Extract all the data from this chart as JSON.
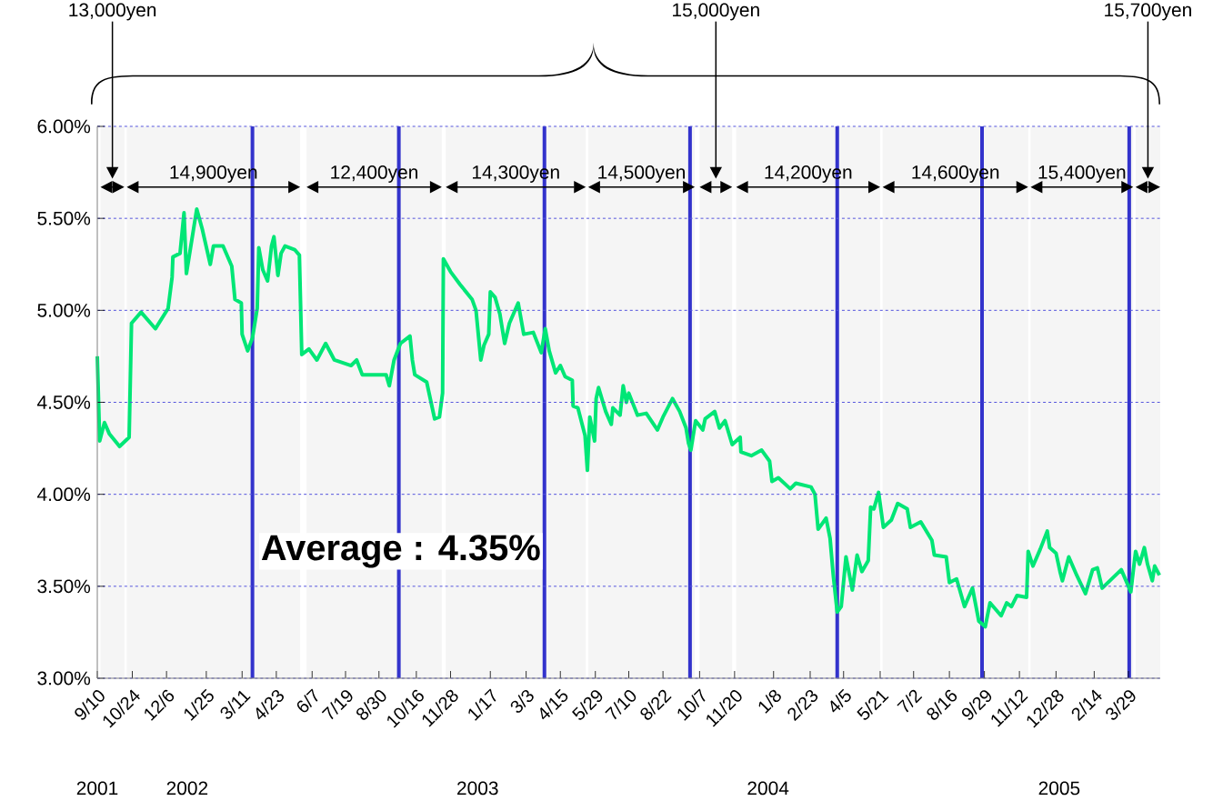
{
  "chart_data": {
    "type": "line",
    "marker": "none",
    "line_style": "solid",
    "grid": "y",
    "x": [
      "2001-09-10",
      "2001-09-13",
      "2001-09-19",
      "2001-09-25",
      "2001-10-08",
      "2001-10-20",
      "2001-10-23",
      "2001-11-04",
      "2001-11-22",
      "2001-12-08",
      "2001-12-13",
      "2001-12-14",
      "2001-12-23",
      "2001-12-28",
      "2001-12-31",
      "2002-01-13",
      "2002-01-20",
      "2002-01-30",
      "2002-02-03",
      "2002-02-15",
      "2002-02-26",
      "2002-03-02",
      "2002-03-10",
      "2002-03-11",
      "2002-03-18",
      "2002-03-24",
      "2002-03-30",
      "2002-04-01",
      "2002-04-06",
      "2002-04-12",
      "2002-04-17",
      "2002-04-20",
      "2002-04-25",
      "2002-04-29",
      "2002-05-04",
      "2002-05-16",
      "2002-05-22",
      "2002-05-25",
      "2002-06-03",
      "2002-06-13",
      "2002-06-24",
      "2002-07-05",
      "2002-07-26",
      "2002-08-02",
      "2002-08-09",
      "2002-09-08",
      "2002-09-12",
      "2002-09-18",
      "2002-09-26",
      "2002-10-08",
      "2002-10-11",
      "2002-10-14",
      "2002-10-29",
      "2002-11-08",
      "2002-11-14",
      "2002-11-18",
      "2002-11-19",
      "2002-11-28",
      "2002-12-10",
      "2002-12-25",
      "2002-12-30",
      "2003-01-05",
      "2003-01-09",
      "2003-01-15",
      "2003-01-17",
      "2003-01-23",
      "2003-01-29",
      "2003-02-04",
      "2003-02-10",
      "2003-02-21",
      "2003-02-28",
      "2003-03-12",
      "2003-03-22",
      "2003-03-27",
      "2003-04-01",
      "2003-04-09",
      "2003-04-15",
      "2003-04-21",
      "2003-04-30",
      "2003-05-01",
      "2003-05-07",
      "2003-05-16",
      "2003-05-19",
      "2003-05-22",
      "2003-05-28",
      "2003-05-30",
      "2003-06-02",
      "2003-06-11",
      "2003-06-18",
      "2003-06-20",
      "2003-06-29",
      "2003-07-03",
      "2003-07-07",
      "2003-07-10",
      "2003-07-21",
      "2003-08-01",
      "2003-08-15",
      "2003-08-22",
      "2003-09-03",
      "2003-09-12",
      "2003-09-20",
      "2003-09-23",
      "2003-09-26",
      "2003-10-02",
      "2003-10-11",
      "2003-10-14",
      "2003-10-26",
      "2003-11-01",
      "2003-11-08",
      "2003-11-17",
      "2003-11-27",
      "2003-11-28",
      "2003-12-11",
      "2003-12-24",
      "2004-01-03",
      "2004-01-06",
      "2004-01-14",
      "2004-01-29",
      "2004-02-05",
      "2004-02-24",
      "2004-02-29",
      "2004-03-04",
      "2004-03-14",
      "2004-03-19",
      "2004-03-23",
      "2004-03-28",
      "2004-04-02",
      "2004-04-08",
      "2004-04-16",
      "2004-04-22",
      "2004-04-28",
      "2004-05-06",
      "2004-05-09",
      "2004-05-13",
      "2004-05-19",
      "2004-05-25",
      "2004-06-04",
      "2004-06-12",
      "2004-06-24",
      "2004-06-28",
      "2004-07-11",
      "2004-07-25",
      "2004-07-28",
      "2004-08-12",
      "2004-08-16",
      "2004-08-25",
      "2004-09-04",
      "2004-09-14",
      "2004-09-22",
      "2004-09-30",
      "2004-10-06",
      "2004-10-20",
      "2004-10-27",
      "2004-11-02",
      "2004-11-09",
      "2004-11-21",
      "2004-11-23",
      "2004-11-29",
      "2004-12-08",
      "2004-12-17",
      "2004-12-20",
      "2004-12-28",
      "2005-01-02",
      "2005-01-05",
      "2005-01-13",
      "2005-01-23",
      "2005-02-03",
      "2005-02-12",
      "2005-02-18",
      "2005-02-24",
      "2005-03-08",
      "2005-03-20",
      "2005-04-01",
      "2005-04-07",
      "2005-04-12",
      "2005-04-18",
      "2005-04-22",
      "2005-04-28",
      "2005-05-01",
      "2005-05-07"
    ],
    "series": [
      {
        "color": "#00e676",
        "values": [
          4.75,
          4.29,
          4.39,
          4.33,
          4.26,
          4.31,
          4.93,
          4.99,
          4.9,
          5.01,
          5.18,
          5.29,
          5.31,
          5.53,
          5.2,
          5.55,
          5.44,
          5.25,
          5.35,
          5.35,
          5.24,
          5.06,
          5.04,
          4.87,
          4.78,
          4.85,
          5.01,
          5.34,
          5.22,
          5.16,
          5.35,
          5.4,
          5.19,
          5.31,
          5.35,
          5.33,
          5.3,
          4.76,
          4.79,
          4.73,
          4.82,
          4.73,
          4.7,
          4.73,
          4.65,
          4.65,
          4.59,
          4.73,
          4.82,
          4.86,
          4.73,
          4.65,
          4.61,
          4.41,
          4.42,
          4.55,
          5.28,
          5.21,
          5.14,
          5.06,
          5.0,
          4.73,
          4.81,
          4.87,
          5.1,
          5.07,
          4.98,
          4.82,
          4.93,
          5.04,
          4.87,
          4.88,
          4.77,
          4.9,
          4.78,
          4.66,
          4.7,
          4.64,
          4.62,
          4.48,
          4.47,
          4.32,
          4.13,
          4.42,
          4.29,
          4.52,
          4.58,
          4.45,
          4.38,
          4.47,
          4.43,
          4.59,
          4.5,
          4.55,
          4.43,
          4.44,
          4.35,
          4.42,
          4.52,
          4.45,
          4.36,
          4.28,
          4.24,
          4.4,
          4.35,
          4.41,
          4.45,
          4.36,
          4.4,
          4.27,
          4.31,
          4.23,
          4.21,
          4.24,
          4.18,
          4.07,
          4.09,
          4.03,
          4.06,
          4.04,
          4.0,
          3.81,
          3.87,
          3.76,
          3.56,
          3.36,
          3.39,
          3.66,
          3.48,
          3.67,
          3.58,
          3.64,
          3.93,
          3.92,
          4.01,
          3.82,
          3.86,
          3.95,
          3.92,
          3.82,
          3.85,
          3.75,
          3.67,
          3.66,
          3.52,
          3.54,
          3.39,
          3.49,
          3.31,
          3.28,
          3.41,
          3.34,
          3.41,
          3.39,
          3.45,
          3.44,
          3.69,
          3.61,
          3.7,
          3.8,
          3.71,
          3.68,
          3.58,
          3.53,
          3.66,
          3.56,
          3.46,
          3.59,
          3.6,
          3.49,
          3.54,
          3.59,
          3.47,
          3.69,
          3.62,
          3.71,
          3.62,
          3.53,
          3.61,
          3.56
        ]
      }
    ],
    "xlim": [
      "2001-09-10",
      "2005-05-08"
    ],
    "xticks": [
      {
        "value": "2001-09-10",
        "label": "9/10"
      },
      {
        "value": "2001-10-24",
        "label": "10/24"
      },
      {
        "value": "2001-12-06",
        "label": "12/6"
      },
      {
        "value": "2002-01-25",
        "label": "1/25"
      },
      {
        "value": "2002-03-11",
        "label": "3/11"
      },
      {
        "value": "2002-04-23",
        "label": "4/23"
      },
      {
        "value": "2002-06-07",
        "label": "6/7"
      },
      {
        "value": "2002-07-19",
        "label": "7/19"
      },
      {
        "value": "2002-08-30",
        "label": "8/30"
      },
      {
        "value": "2002-10-16",
        "label": "10/16"
      },
      {
        "value": "2002-11-28",
        "label": "11/28"
      },
      {
        "value": "2003-01-17",
        "label": "1/17"
      },
      {
        "value": "2003-03-03",
        "label": "3/3"
      },
      {
        "value": "2003-04-15",
        "label": "4/15"
      },
      {
        "value": "2003-05-29",
        "label": "5/29"
      },
      {
        "value": "2003-07-10",
        "label": "7/10"
      },
      {
        "value": "2003-08-22",
        "label": "8/22"
      },
      {
        "value": "2003-10-07",
        "label": "10/7"
      },
      {
        "value": "2003-11-20",
        "label": "11/20"
      },
      {
        "value": "2004-01-08",
        "label": "1/8"
      },
      {
        "value": "2004-02-23",
        "label": "2/23"
      },
      {
        "value": "2004-04-05",
        "label": "4/5"
      },
      {
        "value": "2004-05-21",
        "label": "5/21"
      },
      {
        "value": "2004-07-02",
        "label": "7/2"
      },
      {
        "value": "2004-08-16",
        "label": "8/16"
      },
      {
        "value": "2004-09-29",
        "label": "9/29"
      },
      {
        "value": "2004-11-12",
        "label": "11/12"
      },
      {
        "value": "2004-12-28",
        "label": "12/28"
      },
      {
        "value": "2005-02-14",
        "label": "2/14"
      },
      {
        "value": "2005-03-29",
        "label": "3/29"
      }
    ],
    "ylim": [
      3,
      6
    ],
    "yticks": [
      {
        "value": 3,
        "label": "3.00%"
      },
      {
        "value": 3.5,
        "label": "3.50%"
      },
      {
        "value": 4,
        "label": "4.00%"
      },
      {
        "value": 4.5,
        "label": "4.50%"
      },
      {
        "value": 5,
        "label": "5.00%"
      },
      {
        "value": 5.5,
        "label": "5.50%"
      },
      {
        "value": 6,
        "label": "6.00%"
      }
    ],
    "ref_lines": [
      {
        "axis": "x",
        "value": "2002-03-24",
        "color": "#3333cc"
      },
      {
        "axis": "x",
        "value": "2002-09-24",
        "color": "#3333cc"
      },
      {
        "axis": "x",
        "value": "2003-03-26",
        "color": "#3333cc"
      },
      {
        "axis": "x",
        "value": "2003-09-25",
        "color": "#3333cc"
      },
      {
        "axis": "x",
        "value": "2004-03-28",
        "color": "#3333cc"
      },
      {
        "axis": "x",
        "value": "2004-09-26",
        "color": "#3333cc"
      },
      {
        "axis": "x",
        "value": "2005-03-30",
        "color": "#3333cc"
      }
    ],
    "bands": [
      {
        "axis": "x",
        "from": "2001-09-14",
        "to": "2001-10-14",
        "label": "13,000yen"
      },
      {
        "axis": "x",
        "from": "2001-10-17",
        "to": "2002-05-23",
        "label": "14,900yen"
      },
      {
        "axis": "x",
        "from": "2002-05-31",
        "to": "2002-11-17",
        "label": "12,400yen"
      },
      {
        "axis": "x",
        "from": "2002-11-22",
        "to": "2003-05-17",
        "label": "14,300yen"
      },
      {
        "axis": "x",
        "from": "2003-05-20",
        "to": "2003-10-01",
        "label": "14,500yen"
      },
      {
        "axis": "x",
        "from": "2003-10-07",
        "to": "2003-11-17",
        "label": "15,000yen"
      },
      {
        "axis": "x",
        "from": "2003-11-22",
        "to": "2004-05-21",
        "label": "14,200yen"
      },
      {
        "axis": "x",
        "from": "2004-05-24",
        "to": "2004-11-23",
        "label": "14,600yen"
      },
      {
        "axis": "x",
        "from": "2004-11-26",
        "to": "2005-04-04",
        "label": "15,400yen"
      },
      {
        "axis": "x",
        "from": "2005-04-07",
        "to": "2005-05-08",
        "label": "15,700yen"
      }
    ],
    "annotations": [
      "Average : 4.35%",
      "2001",
      "2002",
      "2003",
      "2004",
      "2005"
    ]
  }
}
